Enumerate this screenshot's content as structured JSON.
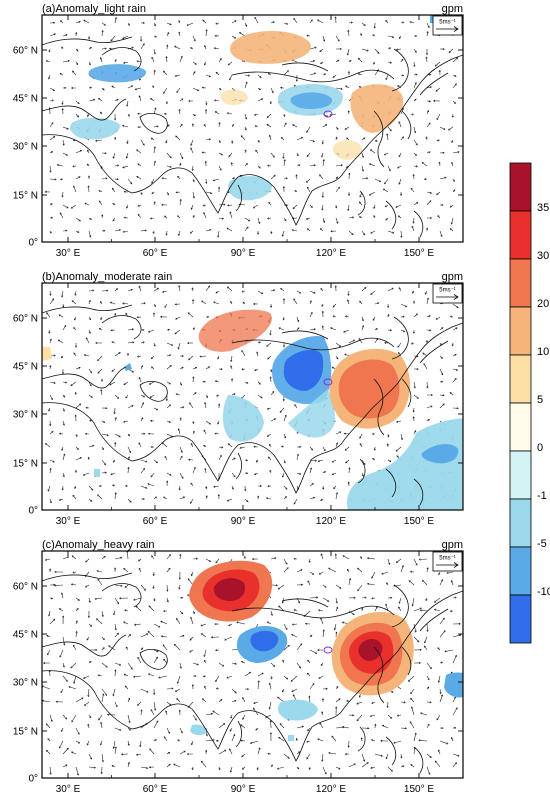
{
  "panels": [
    {
      "title": "(a)Anomaly_light rain",
      "unit": "gpm",
      "ref_vector": "5ms⁻¹"
    },
    {
      "title": "(b)Anomaly_moderate rain",
      "unit": "gpm",
      "ref_vector": "5ms⁻¹"
    },
    {
      "title": "(c)Anomaly_heavy rain",
      "unit": "gpm",
      "ref_vector": "5ms⁻¹"
    }
  ],
  "lon_ticks": [
    "30° E",
    "60° E",
    "90° E",
    "120° E",
    "150° E"
  ],
  "lat_ticks": [
    "0°",
    "15° N",
    "30° N",
    "45° N",
    "60° N"
  ],
  "colorbar": {
    "labels": [
      "35",
      "30",
      "20",
      "10",
      "5",
      "0",
      "-1",
      "-5",
      "-10"
    ],
    "colors": [
      "#a8132a",
      "#e8302c",
      "#f07650",
      "#f5b57a",
      "#fbdfa5",
      "#fdfbea",
      "#d4f3f5",
      "#9ad8ec",
      "#5aaae8",
      "#2f6ee8"
    ]
  }
}
